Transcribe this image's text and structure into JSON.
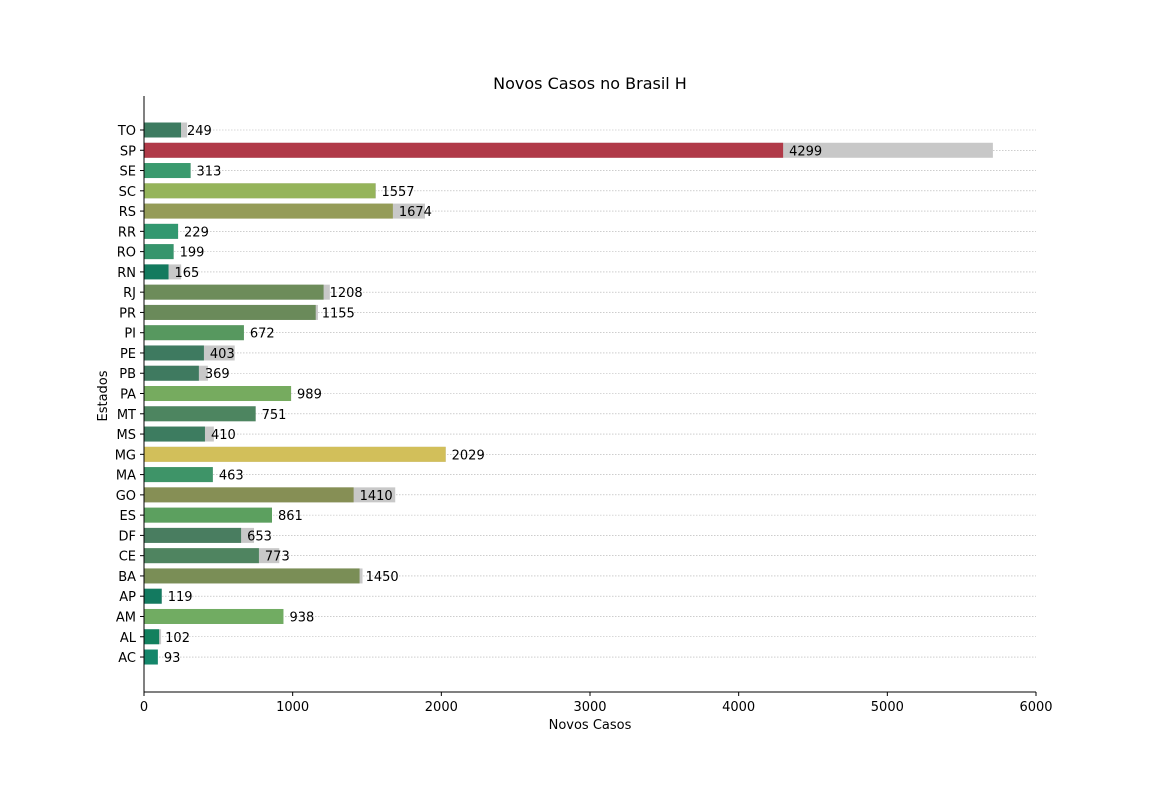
{
  "chart_data": {
    "type": "bar",
    "orientation": "horizontal",
    "title": "Novos Casos no Brasil H",
    "xlabel": "Novos Casos",
    "ylabel": "Estados",
    "xlim": [
      0,
      6000
    ],
    "xticks": [
      "0",
      "1000",
      "2000",
      "3000",
      "4000",
      "5000",
      "6000"
    ],
    "grid": "horizontal dotted",
    "categories": [
      "TO",
      "SP",
      "SE",
      "SC",
      "RS",
      "RR",
      "RO",
      "RN",
      "RJ",
      "PR",
      "PI",
      "PE",
      "PB",
      "PA",
      "MT",
      "MS",
      "MG",
      "MA",
      "GO",
      "ES",
      "DF",
      "CE",
      "BA",
      "AP",
      "AM",
      "AL",
      "AC"
    ],
    "series": [
      {
        "role": "background",
        "color": "#c8c8c8",
        "values": [
          290,
          5710,
          315,
          1560,
          1890,
          230,
          200,
          250,
          1250,
          1170,
          672,
          610,
          430,
          990,
          751,
          470,
          2030,
          463,
          1690,
          861,
          740,
          910,
          1470,
          120,
          938,
          115,
          93
        ]
      },
      {
        "role": "foreground",
        "values": [
          249,
          4299,
          313,
          1557,
          1674,
          229,
          199,
          165,
          1208,
          1155,
          672,
          403,
          369,
          989,
          751,
          410,
          2029,
          463,
          1410,
          861,
          653,
          773,
          1450,
          119,
          938,
          102,
          93
        ],
        "colors": [
          "#3d7b60",
          "#b03a48",
          "#3a9a6e",
          "#95b45a",
          "#959c58",
          "#329870",
          "#36956c",
          "#137a5e",
          "#6d8c5a",
          "#6a8a5a",
          "#57985f",
          "#3e7a60",
          "#3f7a60",
          "#76ab5f",
          "#4d8560",
          "#3d7c60",
          "#d2bf5a",
          "#3e9468",
          "#868f55",
          "#5ca05f",
          "#497d60",
          "#4f8460",
          "#7a8e56",
          "#137a60",
          "#71ac62",
          "#12805e",
          "#14866a"
        ]
      }
    ],
    "labels": [
      "249",
      "4299",
      "313",
      "1557",
      "1674",
      "229",
      "199",
      "165",
      "1208",
      "1155",
      "672",
      "403",
      "369",
      "989",
      "751",
      "410",
      "2029",
      "463",
      "1410",
      "861",
      "653",
      "773",
      "1450",
      "119",
      "938",
      "102",
      "93"
    ]
  }
}
